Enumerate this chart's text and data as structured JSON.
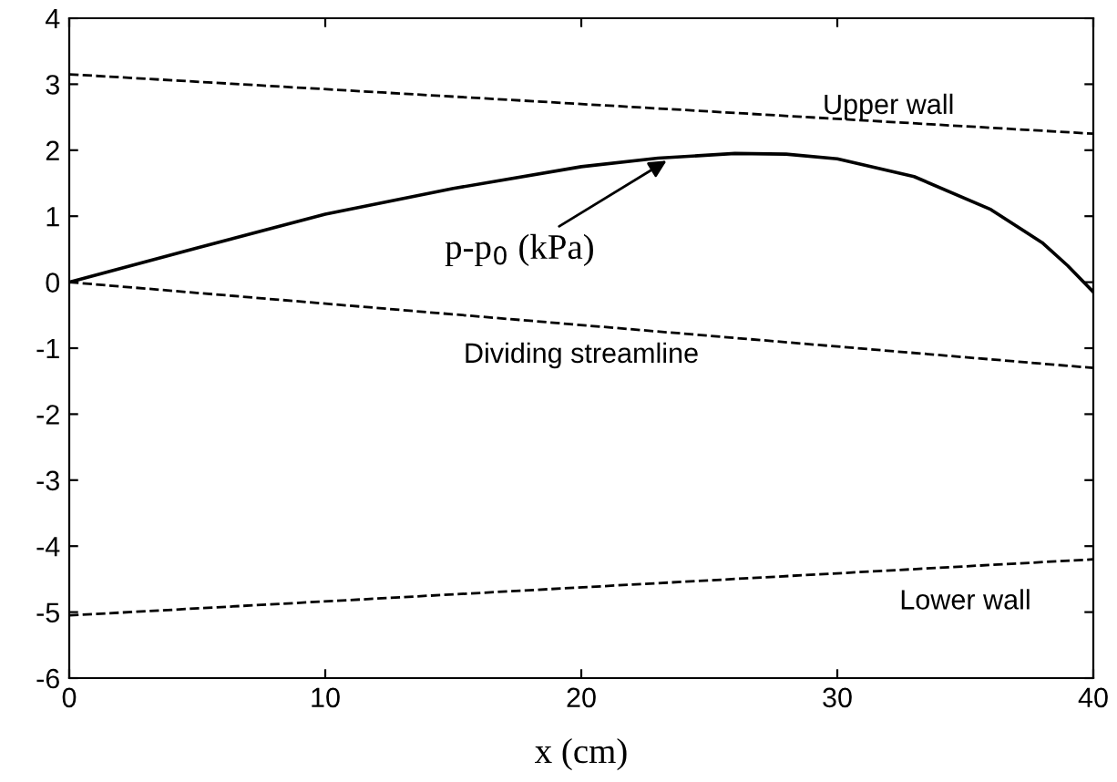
{
  "chart_data": {
    "type": "line",
    "xlabel": "x (cm)",
    "series": [
      {
        "color": "#000000",
        "line_style": "dashed",
        "x": [
          0,
          40
        ],
        "values": [
          3.15,
          2.25
        ]
      },
      {
        "color": "#000000",
        "line_style": "dashed",
        "x": [
          0,
          40
        ],
        "values": [
          0,
          -1.3
        ]
      },
      {
        "color": "#000000",
        "line_style": "dashed",
        "x": [
          0,
          40
        ],
        "values": [
          -5.05,
          -4.2
        ]
      },
      {
        "color": "#000000",
        "line_style": "solid",
        "x": [
          0,
          5,
          10,
          15,
          20,
          23,
          26,
          28,
          30,
          33,
          36,
          38,
          39,
          40
        ],
        "values": [
          0,
          0.52,
          1.03,
          1.42,
          1.75,
          1.88,
          1.95,
          1.94,
          1.87,
          1.6,
          1.1,
          0.6,
          0.25,
          -0.15
        ]
      }
    ],
    "annotations": [
      {
        "text": "Upper wall",
        "x": 32,
        "y": 2.43
      },
      {
        "text": "Dividing streamline",
        "x": 20,
        "y": -0.65
      },
      {
        "text": "Lower wall",
        "x": 35,
        "y": -4.31
      },
      {
        "text": "p-p$_{0}$ (kPa)",
        "x": 23.5,
        "y": 1.88
      }
    ],
    "xlim": [
      0,
      40
    ],
    "ylim": [
      -6,
      4
    ],
    "xticks": [
      0,
      10,
      20,
      30,
      40
    ],
    "yticks": [
      -6,
      -5,
      -4,
      -3,
      -2,
      -1,
      0,
      1,
      2,
      3,
      4
    ],
    "grid": false,
    "legend": false,
    "marker": "none"
  }
}
